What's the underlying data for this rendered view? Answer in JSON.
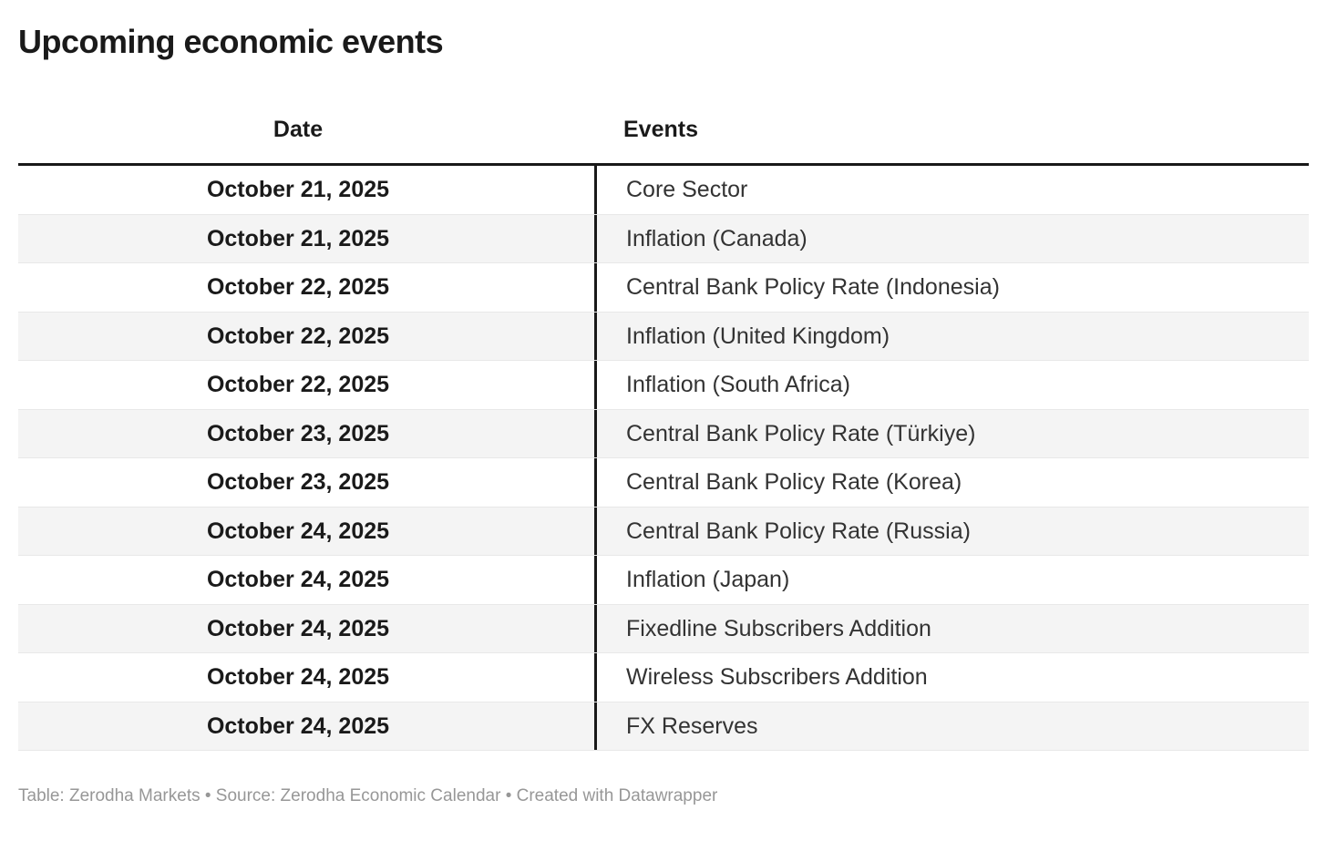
{
  "title": "Upcoming economic events",
  "chart_data": {
    "type": "table",
    "title": "Upcoming economic events",
    "columns": [
      "Date",
      "Events"
    ],
    "rows": [
      [
        "October 21, 2025",
        "Core Sector"
      ],
      [
        "October 21, 2025",
        "Inflation (Canada)"
      ],
      [
        "October 22, 2025",
        "Central Bank Policy Rate (Indonesia)"
      ],
      [
        "October 22, 2025",
        "Inflation (United Kingdom)"
      ],
      [
        "October 22, 2025",
        "Inflation (South Africa)"
      ],
      [
        "October 23, 2025",
        "Central Bank Policy Rate (Türkiye)"
      ],
      [
        "October 23, 2025",
        "Central Bank Policy Rate (Korea)"
      ],
      [
        "October 24, 2025",
        "Central Bank Policy Rate (Russia)"
      ],
      [
        "October 24, 2025",
        "Inflation (Japan)"
      ],
      [
        "October 24, 2025",
        "Fixedline Subscribers Addition"
      ],
      [
        "October 24, 2025",
        "Wireless Subscribers Addition"
      ],
      [
        "October 24, 2025",
        "FX Reserves"
      ]
    ],
    "layout_hints": {
      "date_column_align": "center",
      "events_column_align": "left",
      "striped_rows": true,
      "stripe_pattern": "even rows shaded"
    }
  },
  "footer": "Table: Zerodha Markets • Source: Zerodha Economic Calendar • Created with Datawrapper",
  "colors": {
    "text_primary": "#1a1a1a",
    "text_event": "#333333",
    "stripe": "#f4f4f4",
    "row_border": "#e8e8e8",
    "footer_text": "#979797",
    "header_rule": "#191919"
  }
}
